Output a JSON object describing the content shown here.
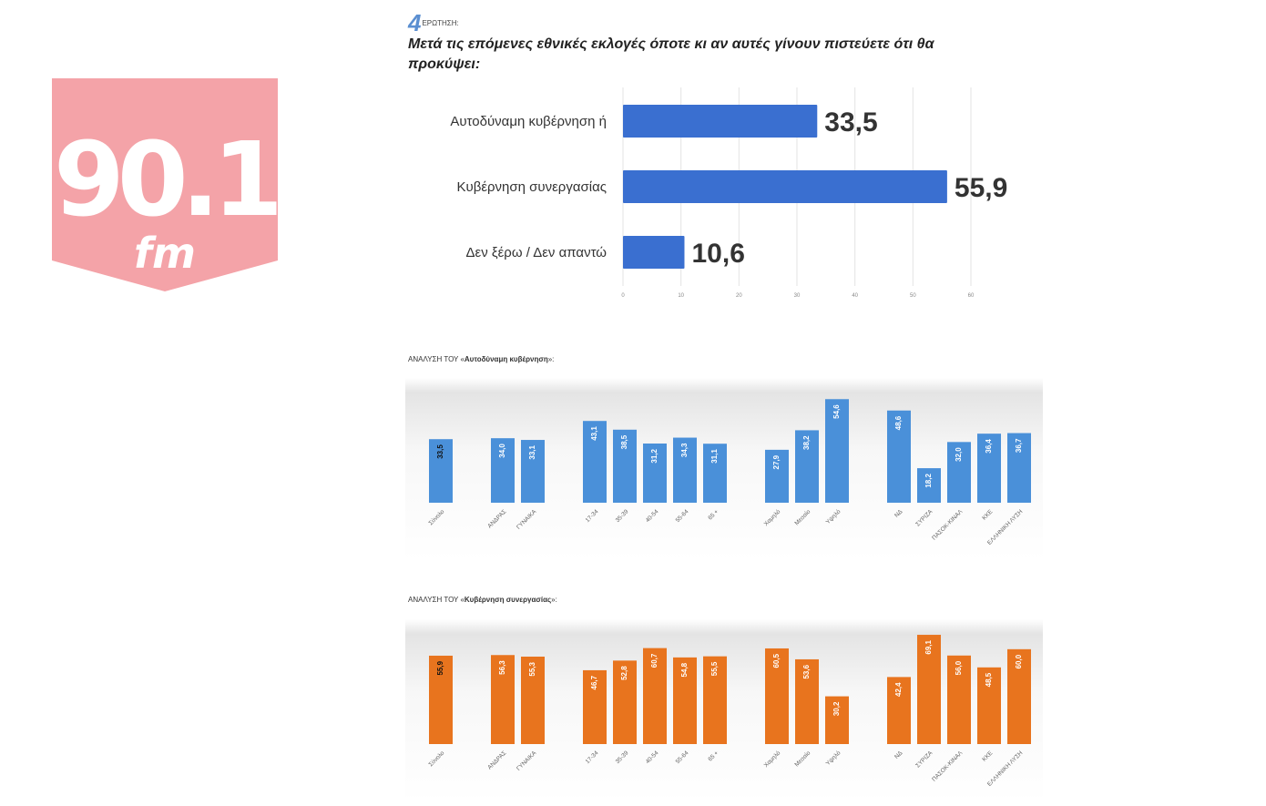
{
  "logo": {
    "number": "90.1",
    "unit": "fm",
    "color": "#f4a3a8"
  },
  "question": {
    "number": "4",
    "label": "ΕΡΩΤΗΣΗ:",
    "text": "Μετά τις επόμενες εθνικές εκλογές όποτε κι αν αυτές γίνουν πιστεύετε ότι θα προκύψει:"
  },
  "chart_data": [
    {
      "type": "bar",
      "orientation": "horizontal",
      "categories": [
        "Αυτοδύναμη κυβέρνηση ή",
        "Κυβέρνηση συνεργασίας",
        "Δεν ξέρω / Δεν απαντώ"
      ],
      "values": [
        33.5,
        55.9,
        10.6
      ],
      "value_labels": [
        "33,5",
        "55,9",
        "10,6"
      ],
      "xlim": [
        0,
        60
      ],
      "x_ticks": [
        "0",
        "10",
        "20",
        "30",
        "40",
        "50",
        "60"
      ],
      "grid": true,
      "color": "#3a6fd0"
    },
    {
      "type": "bar",
      "title_prefix": "ΑΝΑΛΥΣΗ ΤΟΥ «",
      "title_bold": "Αυτοδύναμη κυβέρνηση",
      "title_suffix": "»:",
      "groups": [
        [
          "Σύνολο"
        ],
        [
          "ΑΝΔΡΑΣ",
          "ΓΥΝΑΙΚΑ"
        ],
        [
          "17-34",
          "35-39",
          "40-54",
          "55-64",
          "65 +"
        ],
        [
          "Χαμηλό",
          "Μεσαίο",
          "Υψηλό"
        ],
        [
          "ΝΔ",
          "ΣΥΡΙΖΑ",
          "ΠΑΣΟΚ-ΚΙΝΑΛ",
          "ΚΚΕ",
          "ΕΛΛΗΝΙΚΗ ΛΥΣΗ"
        ]
      ],
      "values": [
        [
          33.5
        ],
        [
          34.0,
          33.1
        ],
        [
          43.1,
          38.5,
          31.2,
          34.3,
          31.1
        ],
        [
          27.9,
          38.2,
          54.6
        ],
        [
          48.6,
          18.2,
          32.0,
          36.4,
          36.7
        ]
      ],
      "value_labels": [
        [
          "33,5"
        ],
        [
          "34,0",
          "33,1"
        ],
        [
          "43,1",
          "38,5",
          "31,2",
          "34,3",
          "31,1"
        ],
        [
          "27,9",
          "38,2",
          "54,6"
        ],
        [
          "48,6",
          "18,2",
          "32,0",
          "36,4",
          "36,7"
        ]
      ],
      "ylim": [
        0,
        60
      ],
      "color": "#4a90d9"
    },
    {
      "type": "bar",
      "title_prefix": "ΑΝΑΛΥΣΗ ΤΟΥ «",
      "title_bold": "Κυβέρνηση συνεργασίας",
      "title_suffix": "»:",
      "groups": [
        [
          "Σύνολο"
        ],
        [
          "ΑΝΔΡΑΣ",
          "ΓΥΝΑΙΚΑ"
        ],
        [
          "17-34",
          "35-39",
          "40-54",
          "55-64",
          "65 +"
        ],
        [
          "Χαμηλό",
          "Μεσαίο",
          "Υψηλό"
        ],
        [
          "ΝΔ",
          "ΣΥΡΙΖΑ",
          "ΠΑΣΟΚ-ΚΙΝΑΛ",
          "ΚΚΕ",
          "ΕΛΛΗΝΙΚΗ ΛΥΣΗ"
        ]
      ],
      "values": [
        [
          55.9
        ],
        [
          56.3,
          55.3
        ],
        [
          46.7,
          52.8,
          60.7,
          54.8,
          55.5
        ],
        [
          60.5,
          53.6,
          30.2
        ],
        [
          42.4,
          69.1,
          56.0,
          48.5,
          60.0
        ]
      ],
      "value_labels": [
        [
          "55,9"
        ],
        [
          "56,3",
          "55,3"
        ],
        [
          "46,7",
          "52,8",
          "60,7",
          "54,8",
          "55,5"
        ],
        [
          "60,5",
          "53,6",
          "30,2"
        ],
        [
          "42,4",
          "69,1",
          "56,0",
          "48,5",
          "60,0"
        ]
      ],
      "ylim": [
        0,
        72
      ],
      "color": "#e8741e"
    }
  ]
}
